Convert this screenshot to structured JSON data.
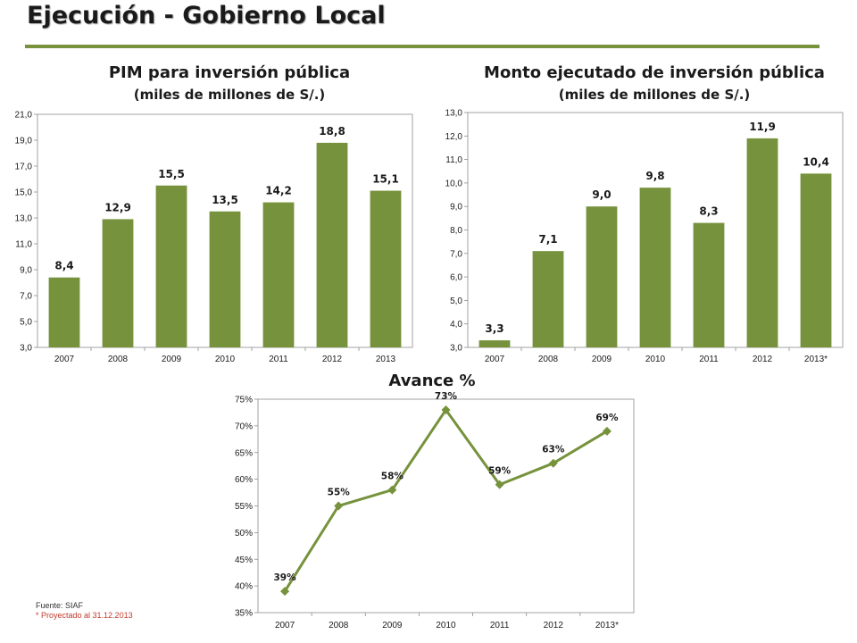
{
  "header": {
    "title": "Ejecución - Gobierno Local"
  },
  "colors": {
    "accent": "#76923c",
    "bar": "#76923c",
    "line": "#76923c"
  },
  "chart_data": [
    {
      "type": "bar",
      "title": "PIM para inversión pública",
      "subtitle": "(miles de millones de S/.)",
      "categories": [
        "2007",
        "2008",
        "2009",
        "2010",
        "2011",
        "2012",
        "2013"
      ],
      "values": [
        8.4,
        12.9,
        15.5,
        13.5,
        14.2,
        18.8,
        15.1
      ],
      "value_labels": [
        "8,4",
        "12,9",
        "15,5",
        "13,5",
        "14,2",
        "18,8",
        "15,1"
      ],
      "ylim": [
        3.0,
        21.0
      ],
      "yticks": [
        3.0,
        5.0,
        7.0,
        9.0,
        11.0,
        13.0,
        15.0,
        17.0,
        19.0,
        21.0
      ],
      "ytick_labels": [
        "3,0",
        "5,0",
        "7,0",
        "9,0",
        "11,0",
        "13,0",
        "15,0",
        "17,0",
        "19,0",
        "21,0"
      ],
      "grid": false,
      "legend": "none"
    },
    {
      "type": "bar",
      "title": "Monto ejecutado de inversión pública",
      "subtitle": "(miles de millones de S/.)",
      "categories": [
        "2007",
        "2008",
        "2009",
        "2010",
        "2011",
        "2012",
        "2013*"
      ],
      "values": [
        3.3,
        7.1,
        9.0,
        9.8,
        8.3,
        11.9,
        10.4
      ],
      "value_labels": [
        "3,3",
        "7,1",
        "9,0",
        "9,8",
        "8,3",
        "11,9",
        "10,4"
      ],
      "ylim": [
        3.0,
        13.0
      ],
      "yticks": [
        3.0,
        4.0,
        5.0,
        6.0,
        7.0,
        8.0,
        9.0,
        10.0,
        11.0,
        12.0,
        13.0
      ],
      "ytick_labels": [
        "3,0",
        "4,0",
        "5,0",
        "6,0",
        "7,0",
        "8,0",
        "9,0",
        "10,0",
        "11,0",
        "12,0",
        "13,0"
      ],
      "grid": false,
      "legend": "none"
    },
    {
      "type": "line",
      "title": "Avance %",
      "categories": [
        "2007",
        "2008",
        "2009",
        "2010",
        "2011",
        "2012",
        "2013*"
      ],
      "values": [
        39,
        55,
        58,
        73,
        59,
        63,
        69
      ],
      "value_labels": [
        "39%",
        "55%",
        "58%",
        "73%",
        "59%",
        "63%",
        "69%"
      ],
      "ylim": [
        35,
        75
      ],
      "yticks": [
        35,
        40,
        45,
        50,
        55,
        60,
        65,
        70,
        75
      ],
      "ytick_labels": [
        "35%",
        "40%",
        "45%",
        "50%",
        "55%",
        "60%",
        "65%",
        "70%",
        "75%"
      ],
      "marker": "diamond",
      "grid": false,
      "legend": "none"
    }
  ],
  "footer": {
    "source": "Fuente: SIAF",
    "note": "* Proyectado al 31.12.2013"
  }
}
